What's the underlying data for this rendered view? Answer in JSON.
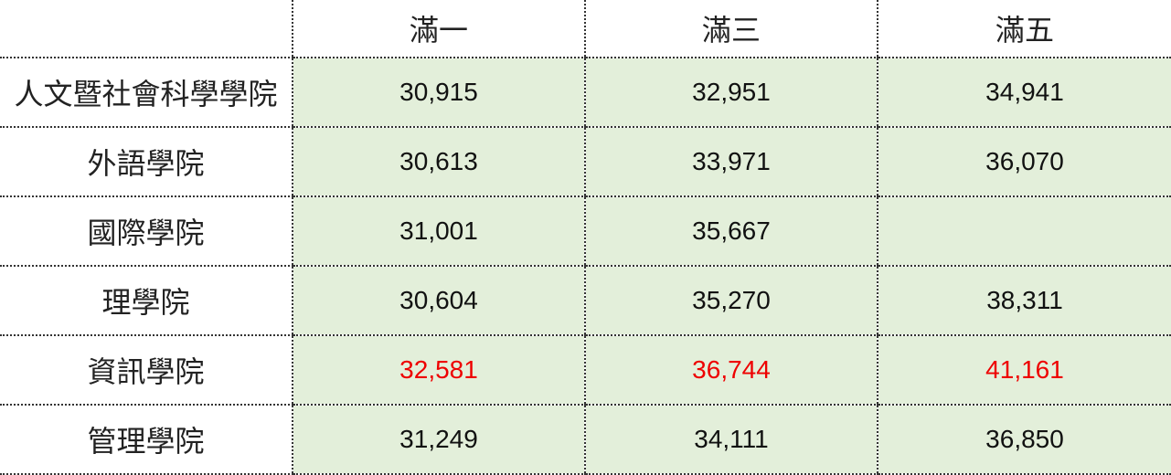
{
  "chart_data": {
    "type": "table",
    "columns": [
      "滿一",
      "滿三",
      "滿五"
    ],
    "rows": [
      {
        "label": "人文暨社會科學學院",
        "values": [
          "30,915",
          "32,951",
          "34,941"
        ],
        "highlight": false
      },
      {
        "label": "外語學院",
        "values": [
          "30,613",
          "33,971",
          "36,070"
        ],
        "highlight": false
      },
      {
        "label": "國際學院",
        "values": [
          "31,001",
          "35,667",
          ""
        ],
        "highlight": false
      },
      {
        "label": "理學院",
        "values": [
          "30,604",
          "35,270",
          "38,311"
        ],
        "highlight": false
      },
      {
        "label": "資訊學院",
        "values": [
          "32,581",
          "36,744",
          "41,161"
        ],
        "highlight": true
      },
      {
        "label": "管理學院",
        "values": [
          "31,249",
          "34,111",
          "36,850"
        ],
        "highlight": false
      }
    ]
  },
  "colors": {
    "cell_background": "#e3efda",
    "highlight_text": "#ee0000",
    "normal_text": "#111111",
    "divider": "#333333"
  }
}
